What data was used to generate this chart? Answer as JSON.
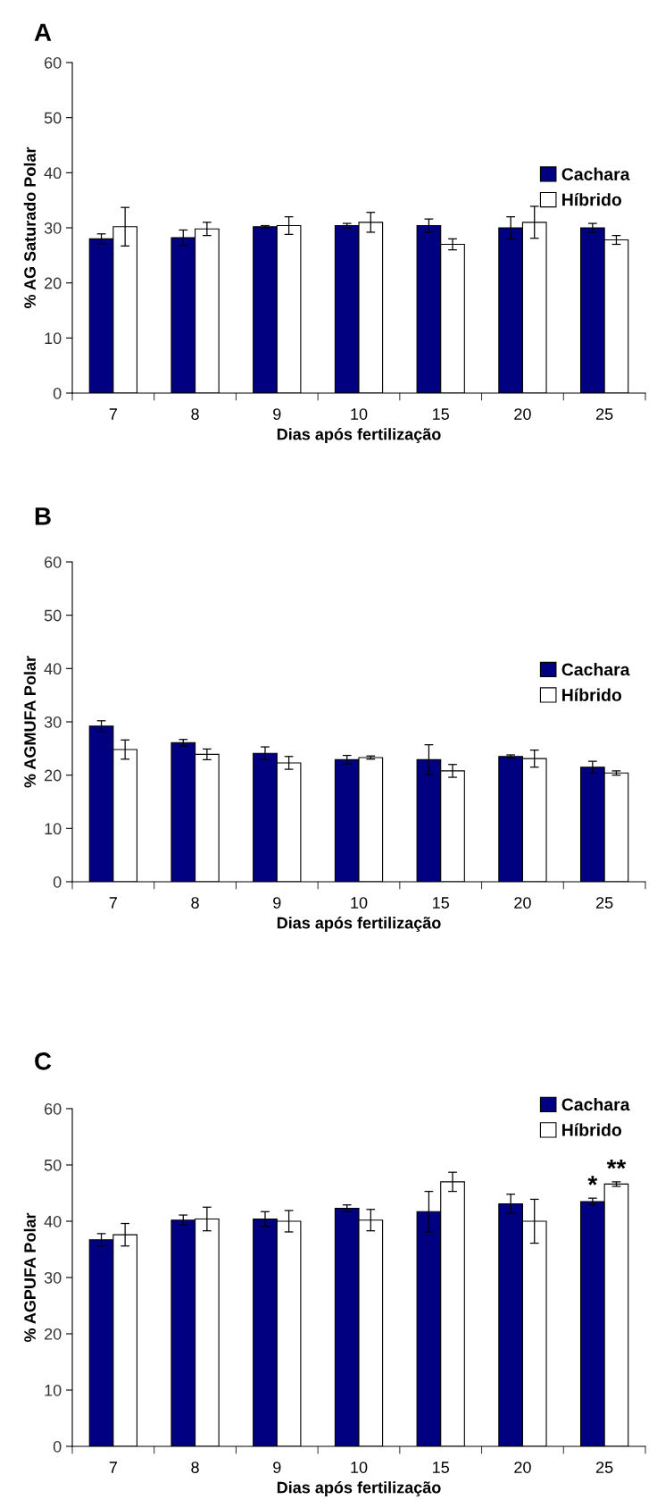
{
  "chart_data": [
    {
      "type": "bar",
      "title": "A",
      "xlabel": "Dias após fertilização",
      "ylabel": "% AG Saturado Polar",
      "categories": [
        "7",
        "8",
        "9",
        "10",
        "15",
        "20",
        "25"
      ],
      "ylim": [
        0,
        60
      ],
      "yticks": [
        0,
        10,
        20,
        30,
        40,
        50,
        60
      ],
      "legend": "right",
      "grid": false,
      "series": [
        {
          "name": "Cachara",
          "color": "#000080",
          "values": [
            28.0,
            28.2,
            30.2,
            30.4,
            30.4,
            30.0,
            30.0
          ],
          "errors": [
            0.9,
            1.4,
            0.2,
            0.4,
            1.2,
            2.0,
            0.8
          ]
        },
        {
          "name": "Híbrido",
          "color": "#ffffff",
          "values": [
            30.2,
            29.8,
            30.4,
            31.0,
            27.0,
            31.0,
            27.8
          ],
          "errors": [
            3.5,
            1.2,
            1.6,
            1.8,
            1.0,
            2.9,
            0.8
          ]
        }
      ]
    },
    {
      "type": "bar",
      "title": "B",
      "xlabel": "Dias após fertilização",
      "ylabel": "% AGMUFA Polar",
      "categories": [
        "7",
        "8",
        "9",
        "10",
        "15",
        "20",
        "25"
      ],
      "ylim": [
        0,
        60
      ],
      "yticks": [
        0,
        10,
        20,
        30,
        40,
        50,
        60
      ],
      "legend": "right",
      "grid": false,
      "series": [
        {
          "name": "Cachara",
          "color": "#000080",
          "values": [
            29.2,
            26.1,
            24.1,
            22.9,
            22.9,
            23.5,
            21.5
          ],
          "errors": [
            1.0,
            0.6,
            1.2,
            0.8,
            2.8,
            0.3,
            1.1
          ]
        },
        {
          "name": "Híbrido",
          "color": "#ffffff",
          "values": [
            24.8,
            23.9,
            22.3,
            23.3,
            20.8,
            23.1,
            20.4
          ],
          "errors": [
            1.8,
            1.0,
            1.2,
            0.3,
            1.2,
            1.6,
            0.4
          ]
        }
      ]
    },
    {
      "type": "bar",
      "title": "C",
      "xlabel": "Dias após fertilização",
      "ylabel": "% AGPUFA Polar",
      "categories": [
        "7",
        "8",
        "9",
        "10",
        "15",
        "20",
        "25"
      ],
      "ylim": [
        0,
        60
      ],
      "yticks": [
        0,
        10,
        20,
        30,
        40,
        50,
        60
      ],
      "legend": "top right",
      "grid": false,
      "series": [
        {
          "name": "Cachara",
          "color": "#000080",
          "values": [
            36.7,
            40.2,
            40.4,
            42.3,
            41.7,
            43.1,
            43.5
          ],
          "errors": [
            1.1,
            0.9,
            1.3,
            0.6,
            3.6,
            1.7,
            0.6
          ]
        },
        {
          "name": "Híbrido",
          "color": "#ffffff",
          "values": [
            37.6,
            40.4,
            40.0,
            40.2,
            47.0,
            40.0,
            46.6
          ],
          "errors": [
            2.0,
            2.1,
            1.9,
            1.9,
            1.7,
            3.9,
            0.4
          ]
        }
      ],
      "annotations": [
        {
          "text": "*",
          "x": "25",
          "y": 44.1
        },
        {
          "text": "**",
          "x": "25",
          "y": 47.0
        }
      ]
    }
  ]
}
